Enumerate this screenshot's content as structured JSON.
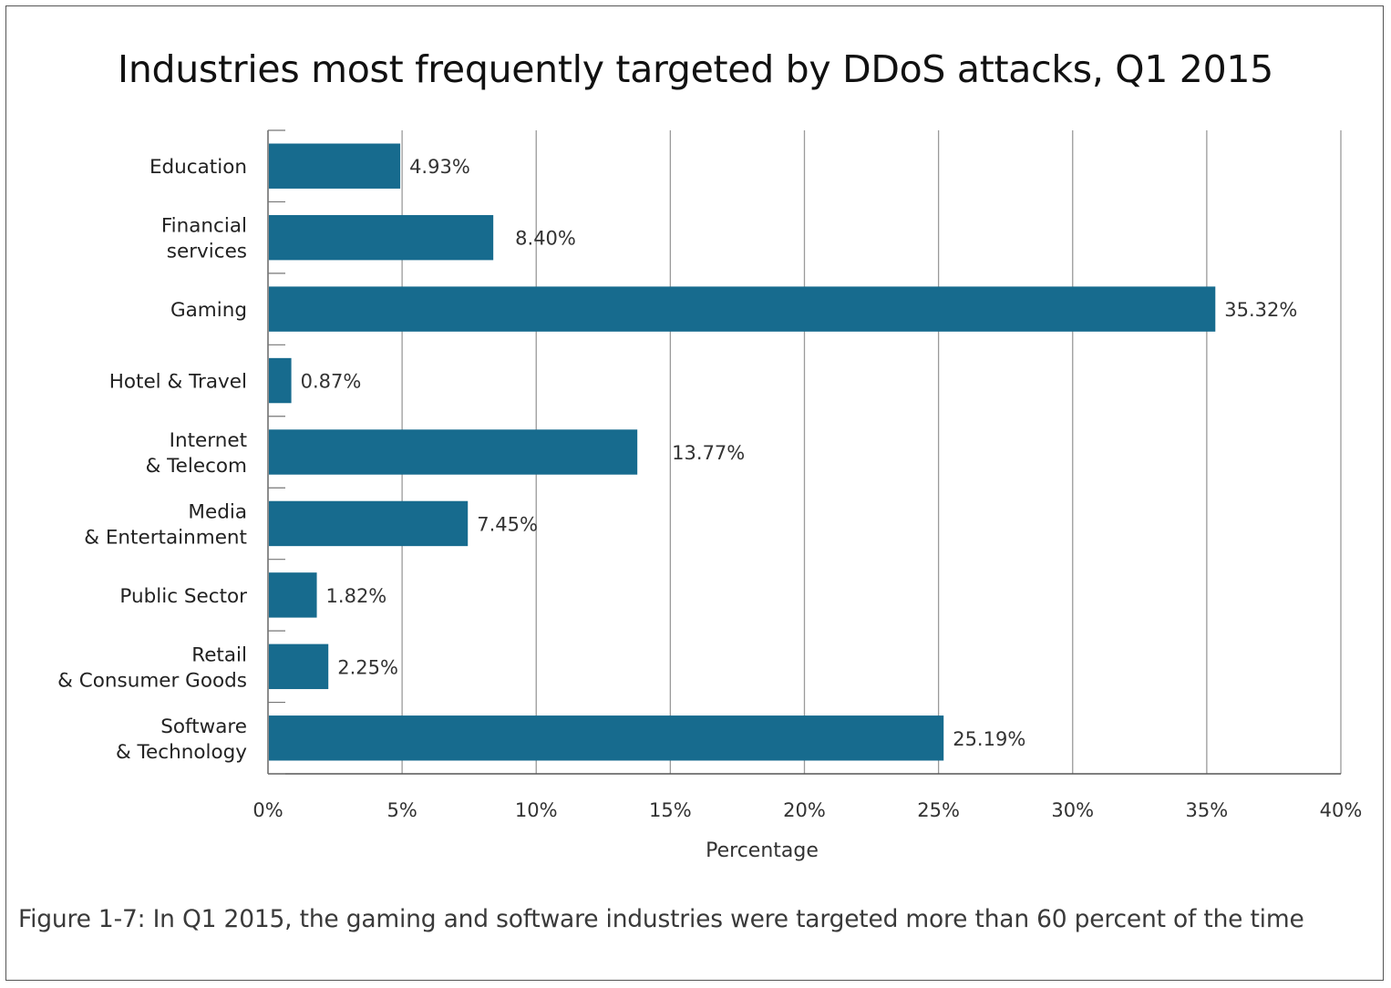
{
  "chart_data": {
    "type": "bar",
    "orientation": "horizontal",
    "title": "Industries most frequently targeted by DDoS attacks, Q1 2015",
    "xlabel": "Percentage",
    "ylabel": "",
    "categories": [
      [
        "Education"
      ],
      [
        "Financial",
        "services"
      ],
      [
        "Gaming"
      ],
      [
        "Hotel & Travel"
      ],
      [
        "Internet",
        "& Telecom"
      ],
      [
        "Media",
        "& Entertainment"
      ],
      [
        "Public Sector"
      ],
      [
        "Retail",
        "& Consumer Goods"
      ],
      [
        "Software",
        "& Technology"
      ]
    ],
    "values": [
      4.93,
      8.4,
      35.32,
      0.87,
      13.77,
      7.45,
      1.82,
      2.25,
      25.19
    ],
    "value_labels": [
      "4.93%",
      "8.40%",
      "35.32%",
      "0.87%",
      "13.77%",
      "7.45%",
      "1.82%",
      "2.25%",
      "25.19%"
    ],
    "xlim": [
      0,
      40
    ],
    "xticks": [
      0,
      5,
      10,
      15,
      20,
      25,
      30,
      35,
      40
    ],
    "xtick_labels": [
      "0%",
      "5%",
      "10%",
      "15%",
      "20%",
      "25%",
      "30%",
      "35%",
      "40%"
    ],
    "grid": "vertical",
    "legend": "none",
    "bar_color": "#176b8e"
  },
  "caption": "Figure 1-7: In Q1 2015, the gaming and software industries were targeted more than 60 percent of the time"
}
